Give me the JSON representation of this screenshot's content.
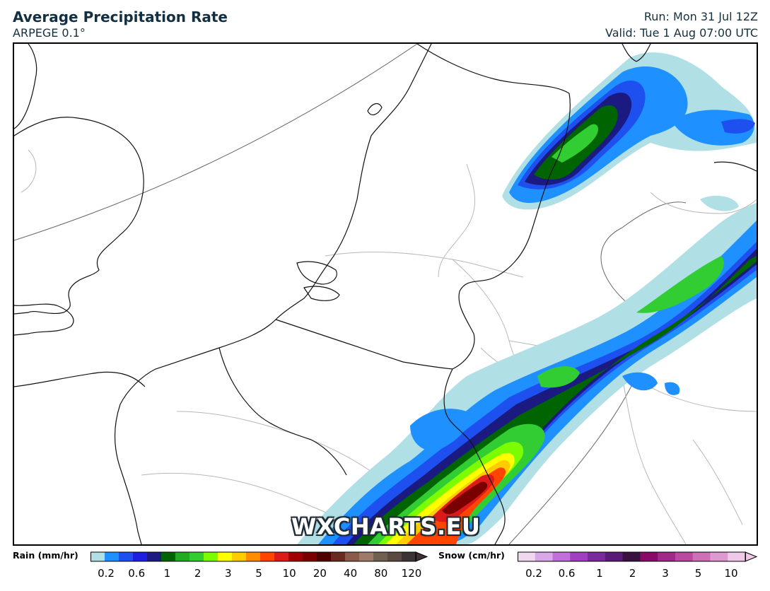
{
  "header": {
    "title": "Average Precipitation Rate",
    "model": "ARPEGE 0.1°",
    "run": "Run: Mon 31 Jul 12Z",
    "valid": "Valid: Tue 1 Aug 07:00 UTC"
  },
  "watermark": "WXCHARTS.EU",
  "legend": {
    "rain": {
      "label": "Rain (mm/hr)",
      "colors": [
        "#b0e0e6",
        "#1e90ff",
        "#1e50f0",
        "#1e1ee0",
        "#1a1a80",
        "#006400",
        "#22aa22",
        "#32cd32",
        "#7cfc00",
        "#ffff00",
        "#ffcc00",
        "#ff8c00",
        "#ff4500",
        "#dd1a1a",
        "#a00000",
        "#7a0000",
        "#500000",
        "#6b2a20",
        "#8b5a4a",
        "#a07a68",
        "#706050",
        "#5a4a42",
        "#3c3434"
      ],
      "ticks": [
        "0.2",
        "0.6",
        "1",
        "2",
        "3",
        "5",
        "10",
        "20",
        "40",
        "80",
        "120"
      ]
    },
    "snow": {
      "label": "Snow (cm/hr)",
      "colors": [
        "#f0d8f0",
        "#d8a8e8",
        "#c070d8",
        "#a040c0",
        "#7a2a9a",
        "#5a1a78",
        "#3a1040",
        "#8a0a6a",
        "#a02a8a",
        "#b84aa0",
        "#cc70b8",
        "#e098d0",
        "#f0c8e8"
      ],
      "ticks": [
        "0.2",
        "0.6",
        "1",
        "2",
        "3",
        "5",
        "10"
      ]
    }
  }
}
